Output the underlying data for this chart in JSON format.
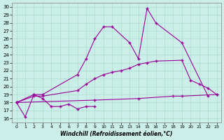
{
  "background_color": "#cceee8",
  "grid_color": "#aaddcc",
  "line_color": "#990099",
  "xlabel": "Windchill (Refroidissement éolien,°C)",
  "ylabel_ticks": [
    16,
    17,
    18,
    19,
    20,
    21,
    22,
    23,
    24,
    25,
    26,
    27,
    28,
    29,
    30
  ],
  "xlabel_ticks": [
    0,
    1,
    2,
    3,
    4,
    5,
    6,
    7,
    8,
    9,
    10,
    11,
    12,
    13,
    14,
    15,
    16,
    17,
    18,
    19,
    20,
    21,
    22,
    23
  ],
  "ylim": [
    15.5,
    30.5
  ],
  "xlim": [
    -0.5,
    23.5
  ],
  "line1_x": [
    0,
    1,
    2,
    3,
    4,
    5,
    6,
    7,
    8,
    9
  ],
  "line1_y": [
    18.0,
    16.2,
    19.0,
    18.5,
    17.5,
    17.5,
    17.8,
    17.2,
    17.5,
    17.5
  ],
  "line2_x": [
    0,
    2,
    3,
    7,
    8,
    9,
    10,
    11,
    13,
    14,
    15,
    16,
    19,
    22
  ],
  "line2_y": [
    18.0,
    19.0,
    19.0,
    21.5,
    23.5,
    26.0,
    27.5,
    27.5,
    25.5,
    23.5,
    29.8,
    28.0,
    25.5,
    18.8
  ],
  "line3_x": [
    0,
    2,
    3,
    7,
    8,
    9,
    10,
    11,
    12,
    13,
    14,
    15,
    16,
    19,
    20,
    21,
    22,
    23
  ],
  "line3_y": [
    18.0,
    18.8,
    18.8,
    19.5,
    20.3,
    21.0,
    21.5,
    21.8,
    22.0,
    22.3,
    22.8,
    23.0,
    23.2,
    23.3,
    20.8,
    20.3,
    19.8,
    19.0
  ],
  "line4_x": [
    0,
    9,
    14,
    18,
    19,
    23
  ],
  "line4_y": [
    18.0,
    18.3,
    18.5,
    18.8,
    18.8,
    19.0
  ],
  "marker": "+",
  "markersize": 3,
  "linewidth": 0.8
}
